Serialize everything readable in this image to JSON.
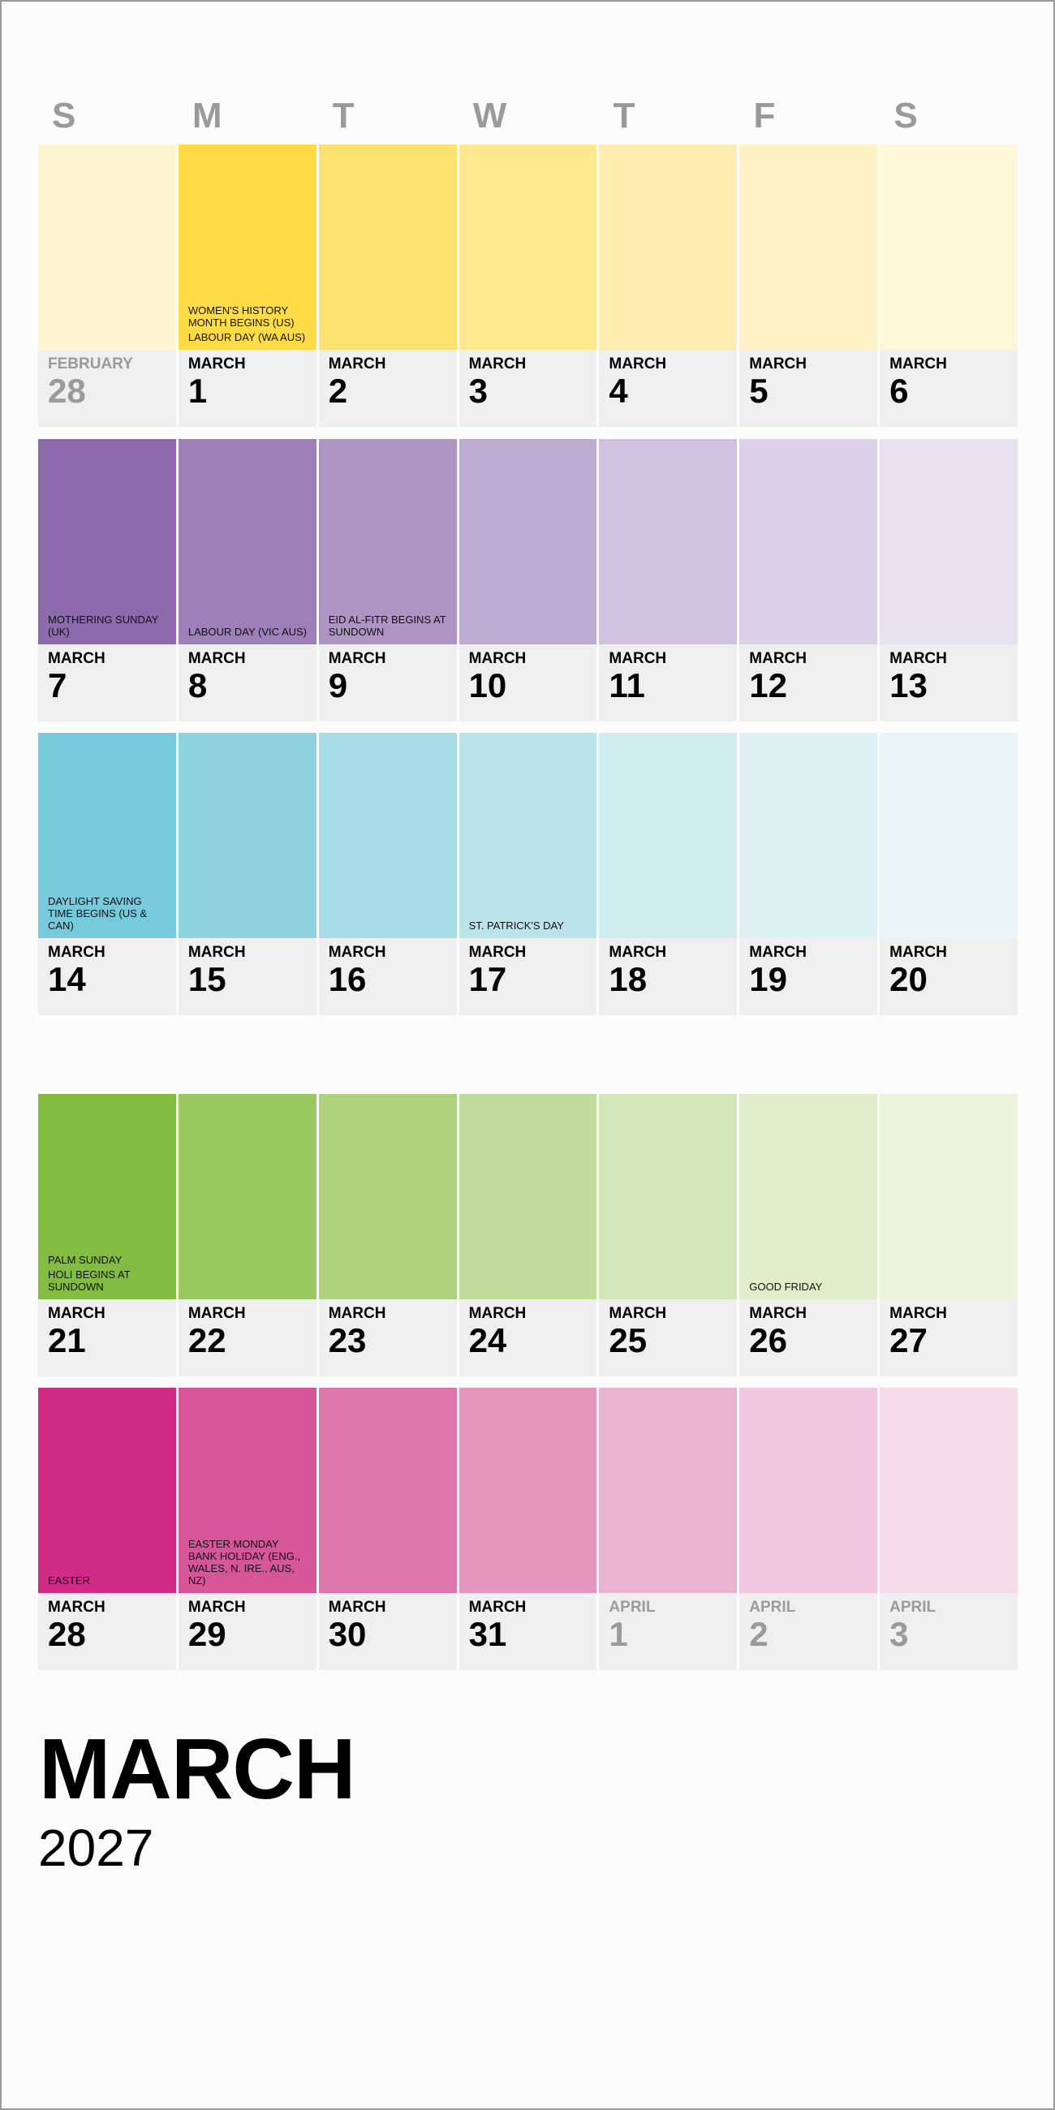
{
  "weekdays": [
    "S",
    "M",
    "T",
    "W",
    "T",
    "F",
    "S"
  ],
  "title": {
    "month": "MARCH",
    "year": "2027"
  },
  "weeks": [
    {
      "days": [
        {
          "month": "FEBRUARY",
          "day": "28",
          "other": true,
          "color": "#fff5d1",
          "events": []
        },
        {
          "month": "MARCH",
          "day": "1",
          "color": "#ffdc45",
          "events": [
            "WOMEN'S HISTORY MONTH BEGINS (US)",
            "LABOUR DAY (WA AUS)"
          ]
        },
        {
          "month": "MARCH",
          "day": "2",
          "color": "#ffe170",
          "events": []
        },
        {
          "month": "MARCH",
          "day": "3",
          "color": "#ffe990",
          "events": []
        },
        {
          "month": "MARCH",
          "day": "4",
          "color": "#ffedb2",
          "events": []
        },
        {
          "month": "MARCH",
          "day": "5",
          "color": "#fff2c5",
          "events": []
        },
        {
          "month": "MARCH",
          "day": "6",
          "color": "#fff7da",
          "events": []
        }
      ]
    },
    {
      "days": [
        {
          "month": "MARCH",
          "day": "7",
          "color": "#8c6aab",
          "events": [
            "MOTHERING SUNDAY (UK)"
          ]
        },
        {
          "month": "MARCH",
          "day": "8",
          "color": "#9e7fb9",
          "events": [
            "LABOUR DAY (VIC AUS)"
          ]
        },
        {
          "month": "MARCH",
          "day": "9",
          "color": "#ae94c4",
          "events": [
            "EID AL-FITR BEGINS AT SUNDOWN"
          ]
        },
        {
          "month": "MARCH",
          "day": "10",
          "color": "#bfaad2",
          "events": []
        },
        {
          "month": "MARCH",
          "day": "11",
          "color": "#d0c1e0",
          "events": []
        },
        {
          "month": "MARCH",
          "day": "12",
          "color": "#dcd0e8",
          "events": []
        },
        {
          "month": "MARCH",
          "day": "13",
          "color": "#e8e1ef",
          "events": []
        }
      ]
    },
    {
      "days": [
        {
          "month": "MARCH",
          "day": "14",
          "color": "#77c9dc",
          "events": [
            "DAYLIGHT SAVING TIME BEGINS (US & CAN)"
          ]
        },
        {
          "month": "MARCH",
          "day": "15",
          "color": "#8fd3e1",
          "events": []
        },
        {
          "month": "MARCH",
          "day": "16",
          "color": "#a7dbe5",
          "events": []
        },
        {
          "month": "MARCH",
          "day": "17",
          "color": "#bbe3ea",
          "events": [
            "ST. PATRICK'S DAY"
          ]
        },
        {
          "month": "MARCH",
          "day": "18",
          "color": "#d0ecf1",
          "events": []
        },
        {
          "month": "MARCH",
          "day": "19",
          "color": "#ddf1f5",
          "events": []
        },
        {
          "month": "MARCH",
          "day": "20",
          "color": "#e8f6fa",
          "events": []
        }
      ]
    },
    {
      "days": [
        {
          "month": "MARCH",
          "day": "21",
          "color": "#82bd41",
          "events": [
            "PALM SUNDAY",
            "HOLI BEGINS AT SUNDOWN"
          ]
        },
        {
          "month": "MARCH",
          "day": "22",
          "color": "#99c85f",
          "events": []
        },
        {
          "month": "MARCH",
          "day": "23",
          "color": "#aed17e",
          "events": []
        },
        {
          "month": "MARCH",
          "day": "24",
          "color": "#c0dc9a",
          "events": []
        },
        {
          "month": "MARCH",
          "day": "25",
          "color": "#d2e7b7",
          "events": []
        },
        {
          "month": "MARCH",
          "day": "26",
          "color": "#dfedcb",
          "events": [
            "GOOD FRIDAY"
          ]
        },
        {
          "month": "MARCH",
          "day": "27",
          "color": "#eaf3dc",
          "events": []
        }
      ]
    },
    {
      "days": [
        {
          "month": "MARCH",
          "day": "28",
          "color": "#cf2b87",
          "events": [
            "EASTER"
          ]
        },
        {
          "month": "MARCH",
          "day": "29",
          "color": "#d65699",
          "events": [
            "EASTER MONDAY BANK HOLIDAY (ENG., WALES, N. IRE., AUS, NZ)"
          ]
        },
        {
          "month": "MARCH",
          "day": "30",
          "color": "#de77ab",
          "events": []
        },
        {
          "month": "MARCH",
          "day": "31",
          "color": "#e596bf",
          "events": []
        },
        {
          "month": "APRIL",
          "day": "1",
          "other": true,
          "color": "#ebb3d2",
          "events": []
        },
        {
          "month": "APRIL",
          "day": "2",
          "other": true,
          "color": "#f1c6e0",
          "events": []
        },
        {
          "month": "APRIL",
          "day": "3",
          "other": true,
          "color": "#f5dbe9",
          "events": []
        }
      ]
    }
  ]
}
